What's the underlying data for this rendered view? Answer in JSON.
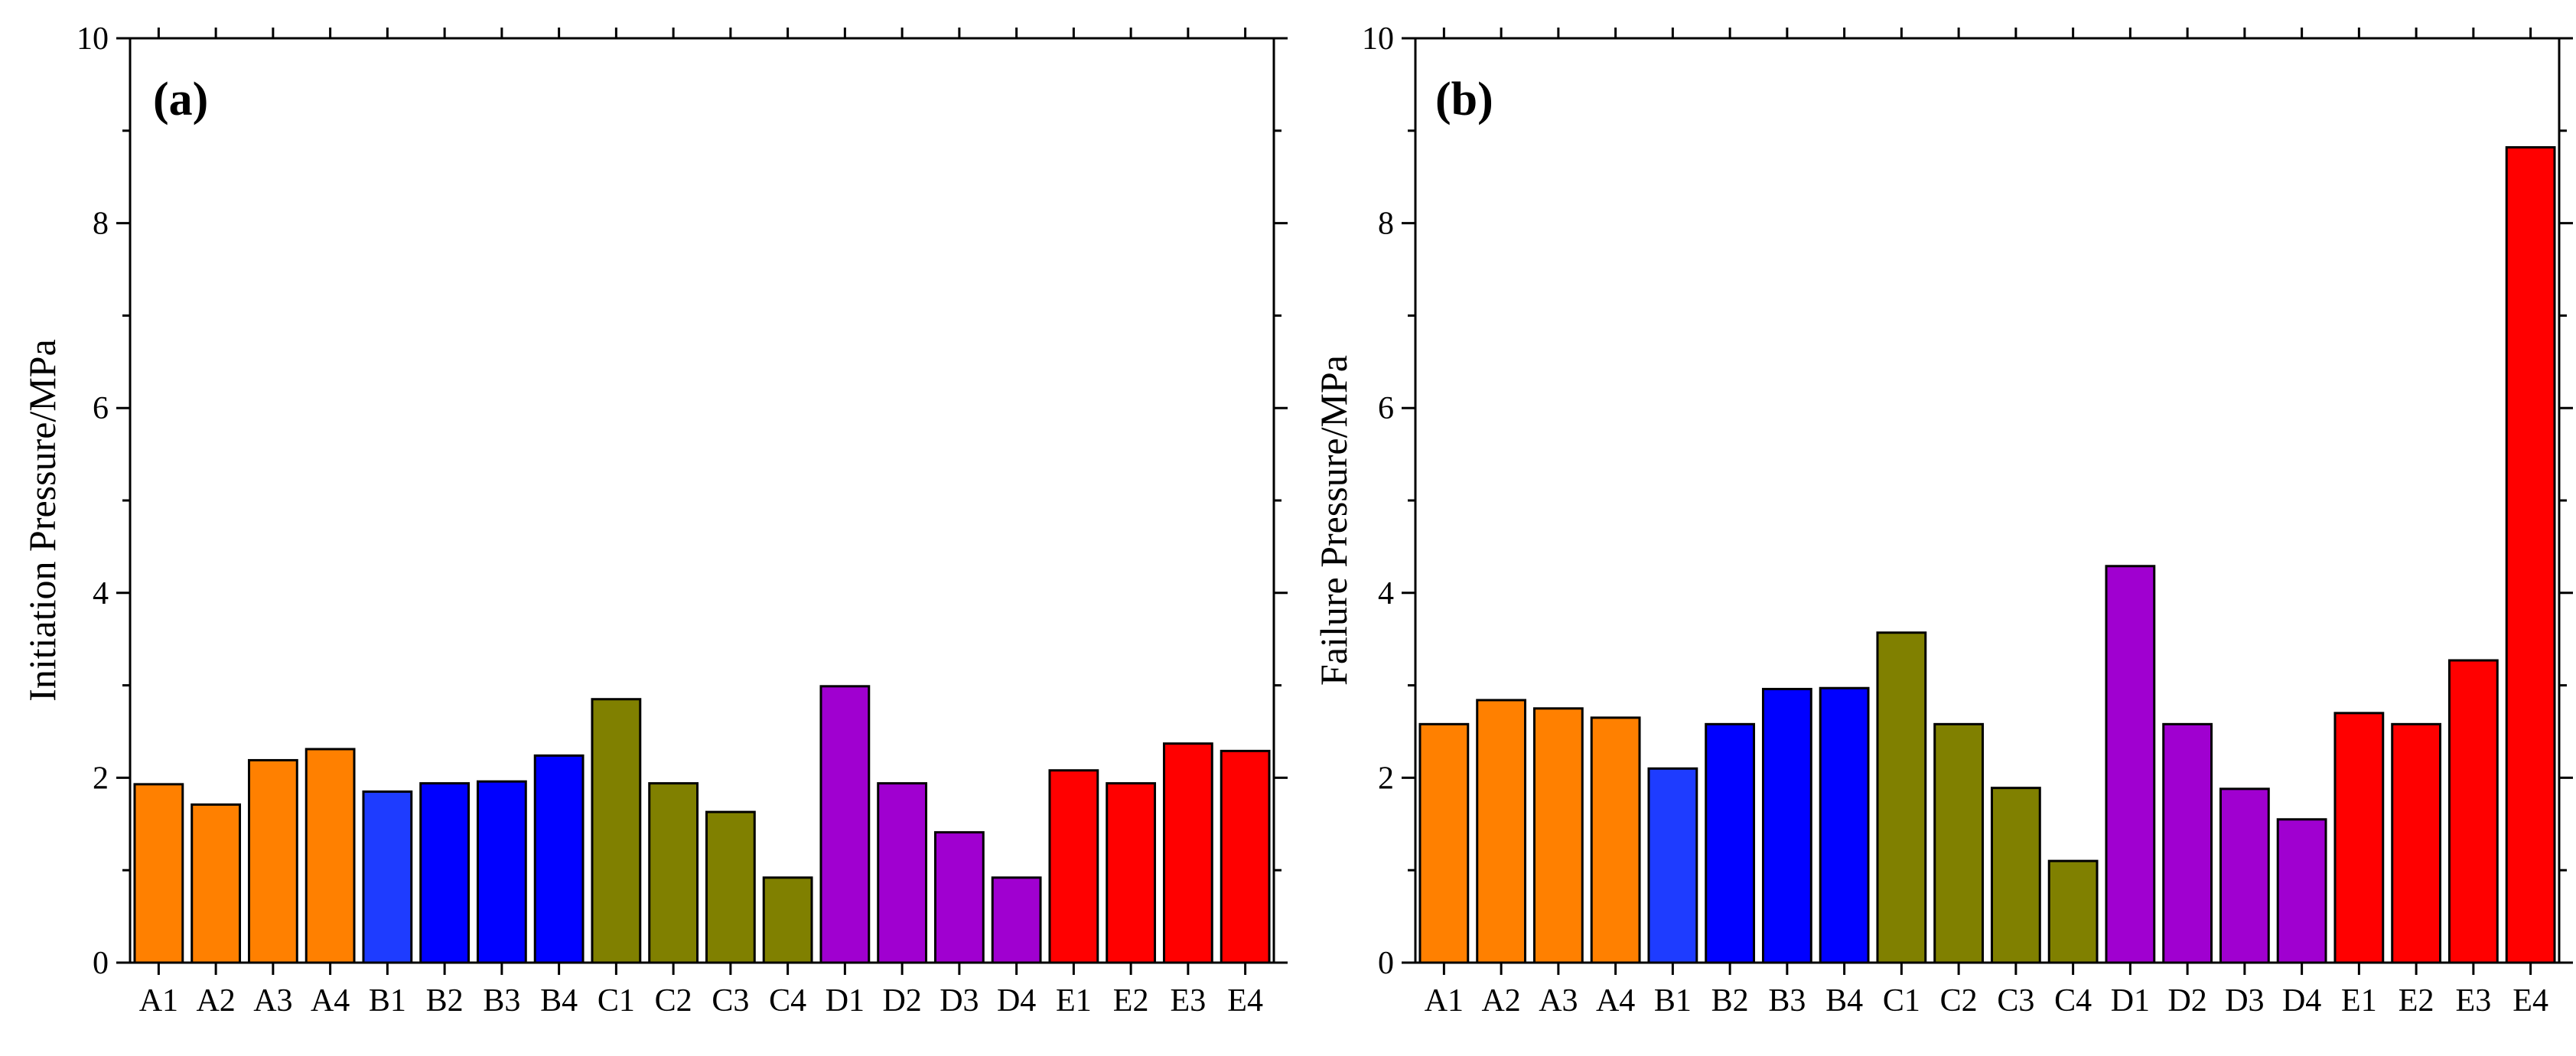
{
  "chart_data": [
    {
      "type": "bar",
      "panel_label": "(a)",
      "ylabel": "Initiation Pressure/MPa",
      "xlabel": "",
      "ylim": [
        0,
        10
      ],
      "yticks": [
        0,
        2,
        4,
        6,
        8,
        10
      ],
      "categories": [
        "A1",
        "A2",
        "A3",
        "A4",
        "B1",
        "B2",
        "B3",
        "B4",
        "C1",
        "C2",
        "C3",
        "C4",
        "D1",
        "D2",
        "D3",
        "D4",
        "E1",
        "E2",
        "E3",
        "E4"
      ],
      "values": [
        1.93,
        1.71,
        2.19,
        2.31,
        1.85,
        1.94,
        1.96,
        2.24,
        2.85,
        1.94,
        1.63,
        0.92,
        2.99,
        1.94,
        1.41,
        0.92,
        2.08,
        1.94,
        2.37,
        2.29
      ],
      "colors": [
        "#ff8000",
        "#ff8000",
        "#ff8000",
        "#ff8000",
        "#1e3cff",
        "#0000ff",
        "#0000ff",
        "#0000ff",
        "#808000",
        "#808000",
        "#808000",
        "#808000",
        "#a000d0",
        "#a000d0",
        "#a000d0",
        "#a000d0",
        "#ff0000",
        "#ff0000",
        "#ff0000",
        "#ff0000"
      ]
    },
    {
      "type": "bar",
      "panel_label": "(b)",
      "ylabel": "Failure Pressure/MPa",
      "xlabel": "",
      "ylim": [
        0,
        10
      ],
      "yticks": [
        0,
        2,
        4,
        6,
        8,
        10
      ],
      "categories": [
        "A1",
        "A2",
        "A3",
        "A4",
        "B1",
        "B2",
        "B3",
        "B4",
        "C1",
        "C2",
        "C3",
        "C4",
        "D1",
        "D2",
        "D3",
        "D4",
        "E1",
        "E2",
        "E3",
        "E4"
      ],
      "values": [
        2.58,
        2.84,
        2.75,
        2.65,
        2.1,
        2.58,
        2.96,
        2.97,
        3.57,
        2.58,
        1.89,
        1.1,
        4.29,
        2.58,
        1.88,
        1.55,
        2.7,
        2.58,
        3.27,
        8.82
      ],
      "colors": [
        "#ff8000",
        "#ff8000",
        "#ff8000",
        "#ff8000",
        "#1e3cff",
        "#0000ff",
        "#0000ff",
        "#0000ff",
        "#808000",
        "#808000",
        "#808000",
        "#808000",
        "#a000d0",
        "#a000d0",
        "#a000d0",
        "#a000d0",
        "#ff0000",
        "#ff0000",
        "#ff0000",
        "#ff0000"
      ]
    }
  ]
}
